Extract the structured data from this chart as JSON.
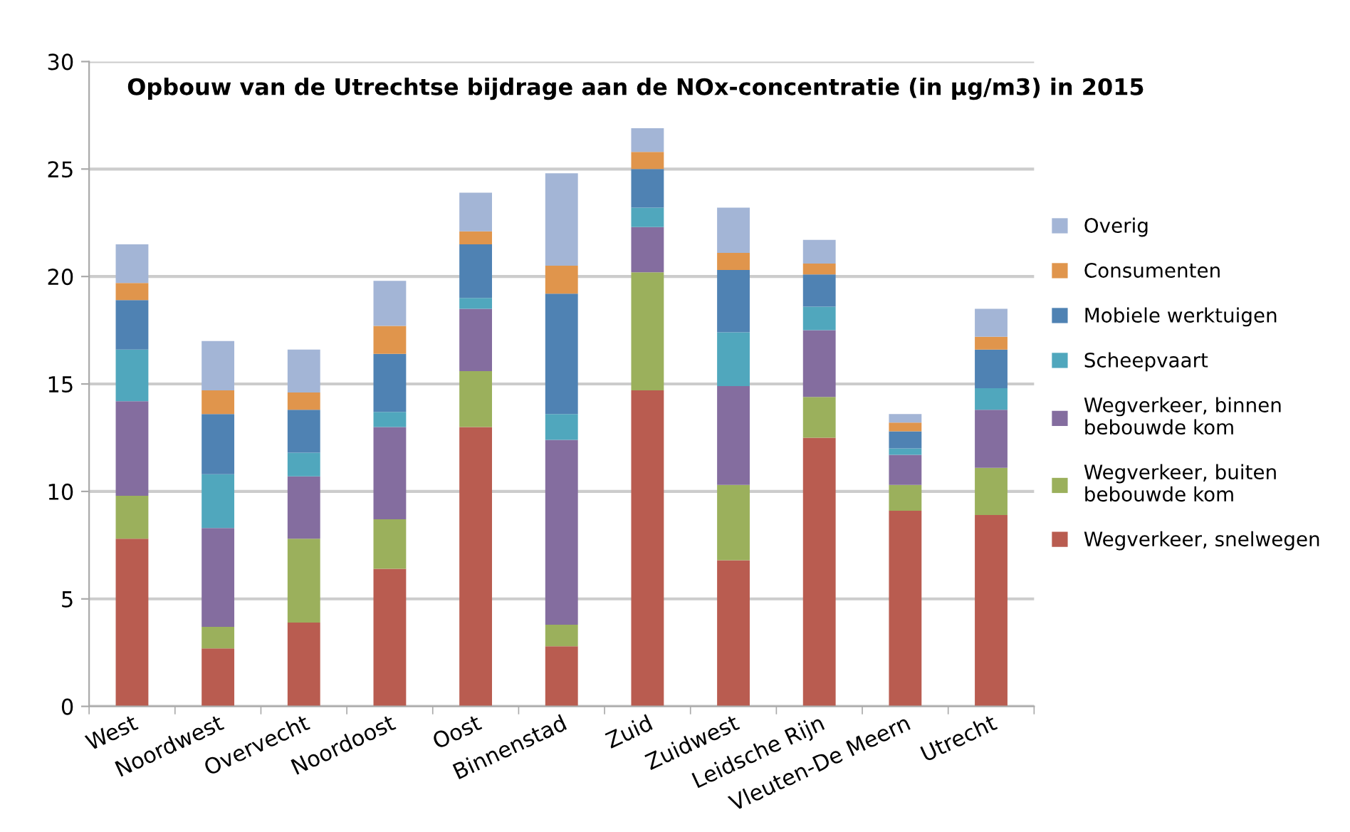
{
  "chart_data": {
    "type": "bar",
    "stacked": true,
    "title": "Opbouw van de Utrechtse bijdrage aan de NOx-concentratie (in µg/m3) in 2015",
    "categories": [
      "West",
      "Noordwest",
      "Overvecht",
      "Noordoost",
      "Oost",
      "Binnenstad",
      "Zuid",
      "Zuidwest",
      "Leidsche Rijn",
      "Vleuten-De Meern",
      "Utrecht"
    ],
    "series": [
      {
        "name": "Wegverkeer, snelwegen",
        "color": "#b95c50",
        "values": [
          7.8,
          2.7,
          3.9,
          6.4,
          13.0,
          2.8,
          14.7,
          6.8,
          12.5,
          9.1,
          8.9
        ]
      },
      {
        "name": "Wegverkeer, buiten bebouwde kom",
        "color": "#9bb05c",
        "values": [
          2.0,
          1.0,
          3.9,
          2.3,
          2.6,
          1.0,
          5.5,
          3.5,
          1.9,
          1.2,
          2.2
        ]
      },
      {
        "name": "Wegverkeer, binnen bebouwde kom",
        "color": "#846d9f",
        "values": [
          4.4,
          4.6,
          2.9,
          4.3,
          2.9,
          8.6,
          2.1,
          4.6,
          3.1,
          1.4,
          2.7
        ]
      },
      {
        "name": "Scheepvaart",
        "color": "#50a7bd",
        "values": [
          2.4,
          2.5,
          1.1,
          0.7,
          0.5,
          1.2,
          0.9,
          2.5,
          1.1,
          0.3,
          1.0
        ]
      },
      {
        "name": "Mobiele werktuigen",
        "color": "#4f82b3",
        "values": [
          2.3,
          2.8,
          2.0,
          2.7,
          2.5,
          5.6,
          1.8,
          2.9,
          1.5,
          0.8,
          1.8
        ]
      },
      {
        "name": "Consumenten",
        "color": "#e0954c",
        "values": [
          0.8,
          1.1,
          0.8,
          1.3,
          0.6,
          1.3,
          0.8,
          0.8,
          0.5,
          0.4,
          0.6
        ]
      },
      {
        "name": "Overig",
        "color": "#a3b5d6",
        "values": [
          1.8,
          2.3,
          2.0,
          2.1,
          1.8,
          4.3,
          1.1,
          2.1,
          1.1,
          0.4,
          1.3
        ]
      }
    ],
    "ylim": [
      0,
      30
    ],
    "yticks": [
      0,
      5,
      10,
      15,
      20,
      25,
      30
    ],
    "grid": "y",
    "legend": "right"
  }
}
